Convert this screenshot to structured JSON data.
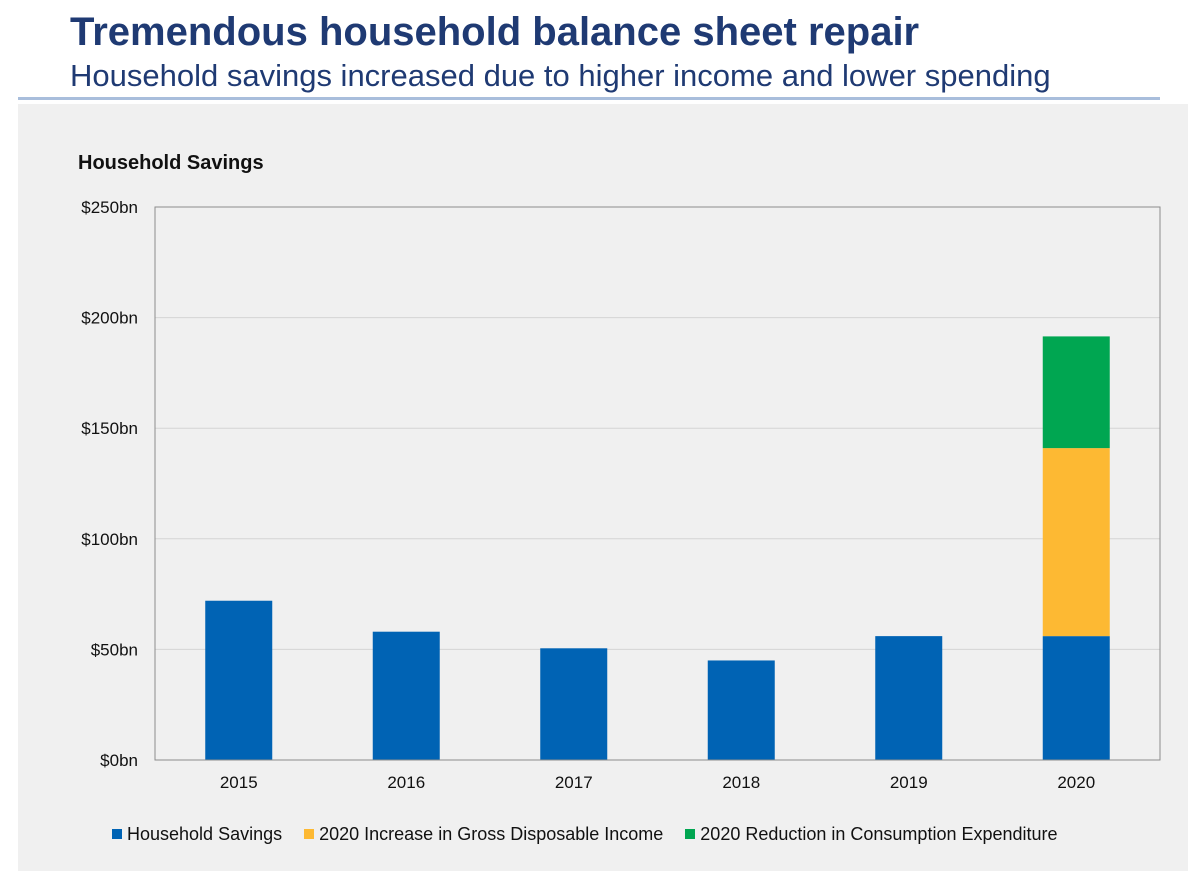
{
  "header": {
    "title": "Tremendous household balance sheet repair",
    "subtitle": "Household savings increased due to higher income and lower spending"
  },
  "chart_data": {
    "type": "bar",
    "stacked": true,
    "title": "Household Savings",
    "xlabel": "",
    "ylabel": "",
    "categories": [
      "2015",
      "2016",
      "2017",
      "2018",
      "2019",
      "2020"
    ],
    "series": [
      {
        "name": "Household Savings",
        "color": "#0063b4",
        "values": [
          72,
          58,
          50.5,
          45,
          56,
          56
        ]
      },
      {
        "name": "2020 Increase in Gross Disposable Income",
        "color": "#fdb933",
        "values": [
          0,
          0,
          0,
          0,
          0,
          85
        ]
      },
      {
        "name": "2020 Reduction in Consumption Expenditure",
        "color": "#00a651",
        "values": [
          0,
          0,
          0,
          0,
          0,
          50.5
        ]
      }
    ],
    "ylim": [
      0,
      250
    ],
    "yticks": [
      0,
      50,
      100,
      150,
      200,
      250
    ],
    "ytick_labels": [
      "$0bn",
      "$50bn",
      "$100bn",
      "$150bn",
      "$200bn",
      "$250bn"
    ],
    "grid": true,
    "legend_position": "bottom"
  }
}
